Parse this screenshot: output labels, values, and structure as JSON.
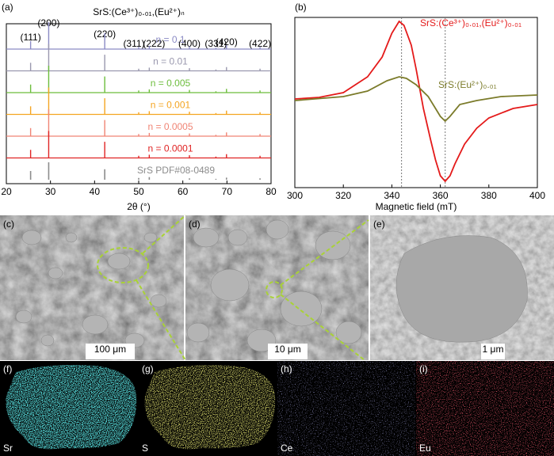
{
  "panel_labels": [
    "(a)",
    "(b)",
    "(c)",
    "(d)",
    "(e)",
    "(f)",
    "(g)",
    "(h)",
    "(i)"
  ],
  "chart_data": [
    {
      "type": "xrd",
      "title": "SrS:(Ce³⁺)₀.₀₁,(Eu²⁺)ₙ",
      "x_label": "2θ (°)",
      "xlim": [
        20,
        80
      ],
      "xticks": [
        20,
        30,
        40,
        50,
        60,
        70,
        80
      ],
      "x": [
        25.5,
        29.6,
        42.3,
        50.0,
        52.4,
        61.5,
        67.5,
        69.9,
        77.5
      ],
      "peak_labels": [
        "(111)",
        "(200)",
        "(220)",
        "(311)",
        "(222)",
        "(400)",
        "(331)",
        "(420)",
        "(422)"
      ],
      "series": [
        {
          "name": "n = 0.1",
          "color": "#8a8ac4",
          "values": [
            30,
            100,
            60,
            8,
            12,
            10,
            5,
            14,
            8
          ]
        },
        {
          "name": "n = 0.01",
          "color": "#9a98ae",
          "values": [
            30,
            100,
            60,
            8,
            12,
            10,
            5,
            14,
            8
          ]
        },
        {
          "name": "n = 0.005",
          "color": "#6cbd3c",
          "values": [
            30,
            100,
            60,
            8,
            12,
            10,
            5,
            14,
            8
          ]
        },
        {
          "name": "n = 0.001",
          "color": "#f4a521",
          "values": [
            30,
            100,
            60,
            8,
            12,
            10,
            5,
            14,
            8
          ]
        },
        {
          "name": "n = 0.0005",
          "color": "#f08474",
          "values": [
            30,
            100,
            60,
            8,
            12,
            10,
            5,
            14,
            8
          ]
        },
        {
          "name": "n = 0.0001",
          "color": "#e02424",
          "values": [
            30,
            100,
            60,
            8,
            12,
            10,
            5,
            14,
            8
          ]
        },
        {
          "name": "SrS PDF#08-0489",
          "color": "#8c8c8c",
          "values": [
            50,
            100,
            60,
            10,
            15,
            8,
            5,
            12,
            8
          ]
        }
      ]
    },
    {
      "type": "line",
      "x_label": "Magnetic field (mT)",
      "xlim": [
        300,
        400
      ],
      "xticks": [
        300,
        320,
        340,
        360,
        380,
        400
      ],
      "ylim": [
        -1.1,
        1.05
      ],
      "vlines": [
        344,
        362
      ],
      "series": [
        {
          "name": "SrS:(Ce³⁺)₀.₀₁,(Eu²⁺)₀.₀₁",
          "color": "#e41a1a",
          "x": [
            300,
            310,
            320,
            330,
            336,
            340,
            343,
            345,
            348,
            350,
            353,
            356,
            358,
            360,
            362,
            364,
            366,
            370,
            375,
            380,
            390,
            400
          ],
          "values": [
            0.02,
            0.04,
            0.1,
            0.3,
            0.55,
            0.85,
            1.0,
            0.95,
            0.7,
            0.4,
            -0.1,
            -0.5,
            -0.75,
            -0.95,
            -1.02,
            -0.95,
            -0.8,
            -0.55,
            -0.35,
            -0.22,
            -0.1,
            -0.05
          ]
        },
        {
          "name": "SrS:(Eu²⁺)₀.₀₁",
          "color": "#7b7b2a",
          "x": [
            300,
            320,
            330,
            338,
            343,
            346,
            350,
            355,
            358,
            360,
            362,
            364,
            368,
            375,
            385,
            400
          ],
          "values": [
            0.0,
            0.05,
            0.12,
            0.25,
            0.3,
            0.28,
            0.2,
            0.05,
            -0.1,
            -0.2,
            -0.26,
            -0.2,
            -0.05,
            0.0,
            0.05,
            0.07
          ]
        }
      ]
    }
  ],
  "micrographs": {
    "scale_bars": [
      "100 μm",
      "10 μm",
      "1 μm"
    ],
    "elements": [
      "Sr",
      "S",
      "Ce",
      "Eu"
    ]
  }
}
